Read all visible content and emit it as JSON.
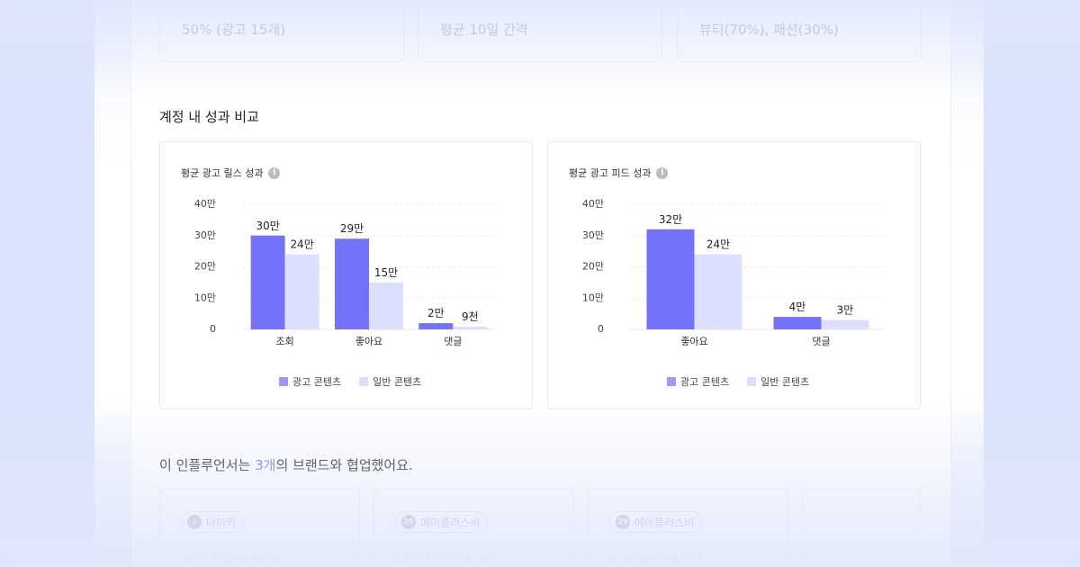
{
  "stats": [
    "50% (광고 15개)",
    "평균 10일 간격",
    "뷰티(70%), 패션(30%)"
  ],
  "section_title": "계정 내 성과 비교",
  "charts": [
    {
      "title": "평균 광고 릴스 성과",
      "info_icon": "i",
      "legend": [
        "광고 콘텐츠",
        "일반 콘텐츠"
      ]
    },
    {
      "title": "평균 광고 피드 성과",
      "info_icon": "i",
      "legend": [
        "광고 콘텐츠",
        "일반 콘텐츠"
      ]
    }
  ],
  "chart_data": [
    {
      "type": "bar",
      "title": "평균 광고 릴스 성과",
      "categories": [
        "조회",
        "좋아요",
        "댓글"
      ],
      "series": [
        {
          "name": "광고 콘텐츠",
          "values": [
            300000,
            290000,
            20000
          ],
          "labels": [
            "30만",
            "29만",
            "2만"
          ],
          "color": "#7472fb"
        },
        {
          "name": "일반 콘텐츠",
          "values": [
            240000,
            150000,
            9000
          ],
          "labels": [
            "24만",
            "15만",
            "9천"
          ],
          "color": "#dcdffd"
        }
      ],
      "yticks": [
        "0",
        "10만",
        "20만",
        "30만",
        "40만"
      ],
      "ylim": [
        0,
        400000
      ],
      "grid": true,
      "legend_position": "bottom-center"
    },
    {
      "type": "bar",
      "title": "평균 광고 피드 성과",
      "categories": [
        "좋아요",
        "댓글"
      ],
      "series": [
        {
          "name": "광고 콘텐츠",
          "values": [
            320000,
            40000
          ],
          "labels": [
            "32만",
            "4만"
          ],
          "color": "#7472fb"
        },
        {
          "name": "일반 콘텐츠",
          "values": [
            240000,
            30000
          ],
          "labels": [
            "24만",
            "3만"
          ],
          "color": "#dcdffd"
        }
      ],
      "yticks": [
        "0",
        "10만",
        "20만",
        "30만",
        "40만"
      ],
      "ylim": [
        0,
        400000
      ],
      "grid": true,
      "legend_position": "bottom-center"
    }
  ],
  "collab": {
    "prefix": "이 인플루언서는 ",
    "count": "3개",
    "suffix": "의 브랜드와 협업했어요."
  },
  "brands": [
    {
      "name": "나이키",
      "logo_icon": "nike-swoosh-icon",
      "logo_text": "✓",
      "sub": "추천한 협업 인플루언서"
    },
    {
      "name": "에이플러스비",
      "logo_icon": "aplusb-logo-icon",
      "logo_text": "29",
      "sub": "추천한 협업 인플루언서"
    },
    {
      "name": "에이플러스비",
      "logo_icon": "aplusb-logo-icon",
      "logo_text": "29",
      "sub": "추천한 협업 인플루언서"
    }
  ],
  "colors": {
    "accent": "#6f6cf3",
    "ad": "#7472fb",
    "normal": "#dcdffd"
  }
}
